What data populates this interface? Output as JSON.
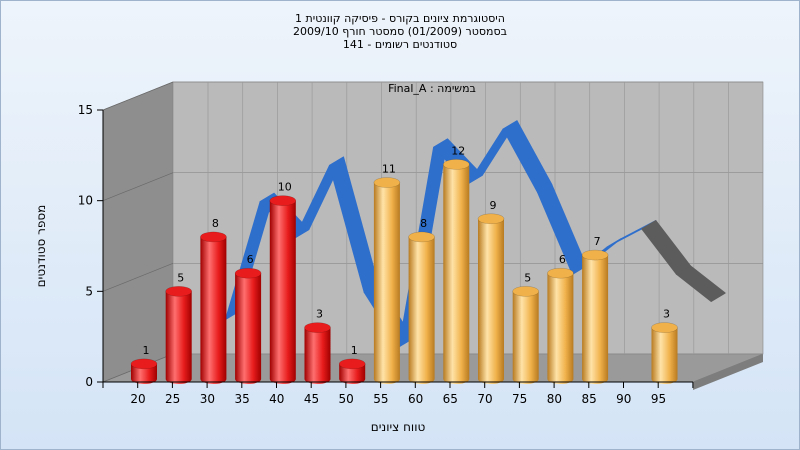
{
  "chart_data": {
    "type": "bar",
    "title_lines": [
      "היסטוגרמת ציונים בקורס - פיסיקה קוונטית 1",
      "בסמסטר  (01/2009)  סמסטר חורף 2009/10",
      "סטודנטים רשומים - 141"
    ],
    "annotation": "במשימה : Final_A",
    "xlabel": "טווח ציונים",
    "ylabel": "מספר סטודנטים",
    "ylim": [
      0,
      15
    ],
    "y_ticks": [
      0,
      5,
      10,
      15
    ],
    "x_tick_labels": [
      "20",
      "25",
      "30",
      "35",
      "40",
      "45",
      "50",
      "55",
      "60",
      "65",
      "70",
      "75",
      "80",
      "85",
      "90",
      "95"
    ],
    "grid": true,
    "legend": "none",
    "bars": [
      {
        "x": 20,
        "value": 1,
        "color": "red"
      },
      {
        "x": 25,
        "value": 5,
        "color": "red"
      },
      {
        "x": 30,
        "value": 8,
        "color": "red"
      },
      {
        "x": 35,
        "value": 6,
        "color": "red"
      },
      {
        "x": 40,
        "value": 10,
        "color": "red"
      },
      {
        "x": 45,
        "value": 3,
        "color": "red"
      },
      {
        "x": 50,
        "value": 1,
        "color": "red"
      },
      {
        "x": 55,
        "value": 11,
        "color": "orange"
      },
      {
        "x": 60,
        "value": 8,
        "color": "orange"
      },
      {
        "x": 65,
        "value": 12,
        "color": "orange"
      },
      {
        "x": 70,
        "value": 9,
        "color": "orange"
      },
      {
        "x": 75,
        "value": 5,
        "color": "orange"
      },
      {
        "x": 80,
        "value": 6,
        "color": "orange"
      },
      {
        "x": 85,
        "value": 7,
        "color": "orange"
      },
      {
        "x": 95,
        "value": 3,
        "color": "orange"
      }
    ],
    "trend_line": [
      {
        "x": 30,
        "value": 3.0
      },
      {
        "x": 35,
        "value": 9.5
      },
      {
        "x": 40,
        "value": 7.5
      },
      {
        "x": 45,
        "value": 11.5
      },
      {
        "x": 50,
        "value": 4.5
      },
      {
        "x": 55,
        "value": 1.5
      },
      {
        "x": 60,
        "value": 12.5
      },
      {
        "x": 65,
        "value": 10.5
      },
      {
        "x": 70,
        "value": 13.5
      },
      {
        "x": 75,
        "value": 10.0
      },
      {
        "x": 80,
        "value": 5.5
      },
      {
        "x": 85,
        "value": 7.0
      },
      {
        "x": 90,
        "value": 8.0
      },
      {
        "x": 95,
        "value": 5.5
      },
      {
        "x": 100,
        "value": 4.0
      }
    ],
    "trend_line_gray_from_x": 90
  },
  "colors": {
    "red_light": "#ff6f6f",
    "red_mid": "#e81c1c",
    "red_dark": "#a00000",
    "orange_light": "#ffe3a8",
    "orange_mid": "#f0b14a",
    "orange_dark": "#b77a20",
    "trend_blue": "#2f6fcc",
    "trend_gray": "#5c5c5c",
    "back_wall": "#bababa",
    "left_wall": "#8e8e8e",
    "floor": "#9a9a9a"
  }
}
